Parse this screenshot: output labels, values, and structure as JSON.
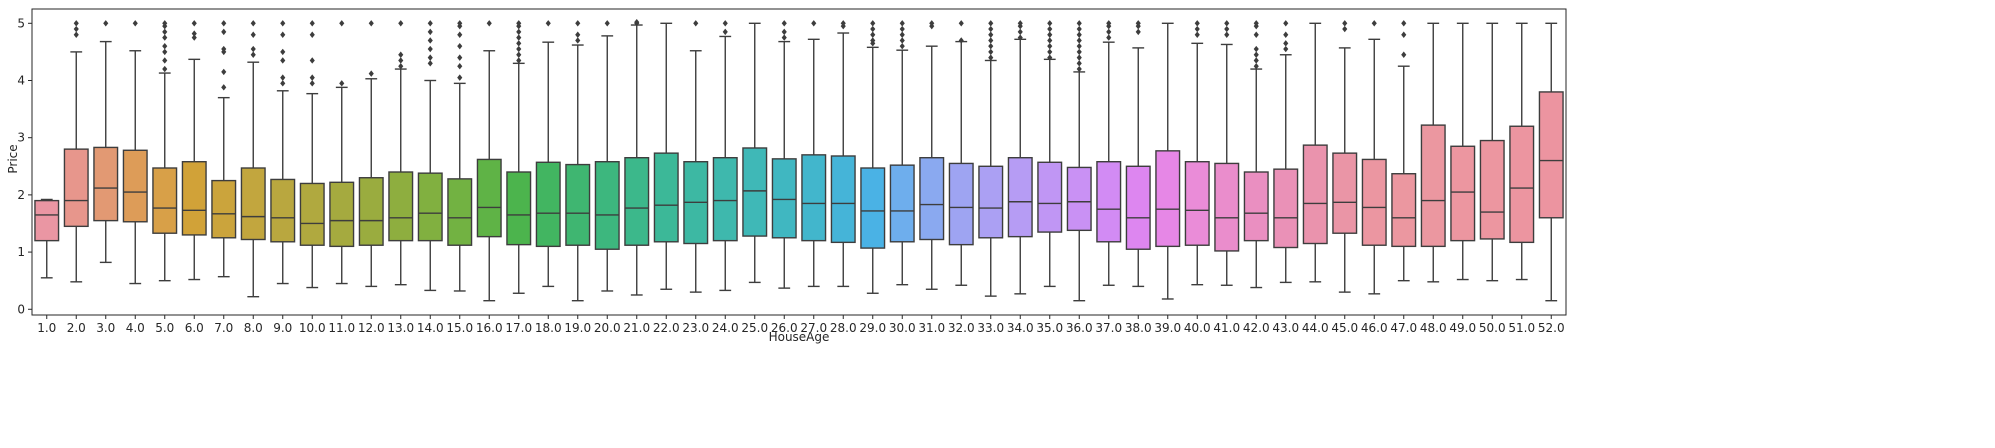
{
  "chart_data": {
    "type": "box",
    "xlabel": "HouseAge",
    "ylabel": "Price",
    "ylim": [
      -0.1,
      5.25
    ],
    "yticks": [
      "0",
      "1",
      "2",
      "3",
      "4",
      "5"
    ],
    "grid": false,
    "legend": "none",
    "colors": [
      "#ea96a3",
      "#e7968c",
      "#e29973",
      "#dd9c58",
      "#d8a048",
      "#d1a238",
      "#cba43c",
      "#c2a63e",
      "#b9a73f",
      "#b0a93f",
      "#a5aa3f",
      "#9aac3f",
      "#8eae3f",
      "#81b040",
      "#72b242",
      "#5fb346",
      "#4cb44d",
      "#42b561",
      "#3fb671",
      "#3db77e",
      "#3cb88b",
      "#3cb898",
      "#3db8a3",
      "#3eb8ad",
      "#3fb8b7",
      "#40b7c1",
      "#42b6cc",
      "#45b4d8",
      "#4ab2e5",
      "#6eaeed",
      "#8aa9f0",
      "#9ea4f2",
      "#aba0f3",
      "#b69cf4",
      "#c096f4",
      "#c991f4",
      "#d28bf4",
      "#dd86f0",
      "#e687e6",
      "#ea8cd8",
      "#ea8dcc",
      "#ea8fc1",
      "#ea91b7",
      "#ea93ad",
      "#ea95a6",
      "#eb96a1",
      "#eb97a0",
      "#eb97a0",
      "#ec96a0",
      "#ec96a0",
      "#ec95a0",
      "#ec94a0"
    ],
    "boxes": [
      {
        "x": "1.0",
        "min": 0.55,
        "q1": 1.2,
        "median": 1.65,
        "q3": 1.9,
        "max": 1.92,
        "outliers": []
      },
      {
        "x": "2.0",
        "min": 0.48,
        "q1": 1.45,
        "median": 1.9,
        "q3": 2.8,
        "max": 4.5,
        "outliers": [
          4.8,
          4.9,
          5.0
        ]
      },
      {
        "x": "3.0",
        "min": 0.82,
        "q1": 1.55,
        "median": 2.12,
        "q3": 2.83,
        "max": 4.68,
        "outliers": [
          5.0
        ]
      },
      {
        "x": "4.0",
        "min": 0.45,
        "q1": 1.53,
        "median": 2.05,
        "q3": 2.78,
        "max": 4.52,
        "outliers": [
          5.0
        ]
      },
      {
        "x": "5.0",
        "min": 0.5,
        "q1": 1.33,
        "median": 1.77,
        "q3": 2.47,
        "max": 4.13,
        "outliers": [
          4.2,
          4.35,
          4.5,
          4.6,
          4.75,
          4.85,
          4.95,
          5.0
        ]
      },
      {
        "x": "6.0",
        "min": 0.52,
        "q1": 1.3,
        "median": 1.73,
        "q3": 2.58,
        "max": 4.37,
        "outliers": [
          4.75,
          4.82,
          5.0
        ]
      },
      {
        "x": "7.0",
        "min": 0.57,
        "q1": 1.25,
        "median": 1.67,
        "q3": 2.25,
        "max": 3.7,
        "outliers": [
          3.88,
          4.15,
          4.5,
          4.55,
          4.85,
          5.0
        ]
      },
      {
        "x": "8.0",
        "min": 0.22,
        "q1": 1.22,
        "median": 1.62,
        "q3": 2.47,
        "max": 4.32,
        "outliers": [
          4.45,
          4.55,
          4.8,
          5.0
        ]
      },
      {
        "x": "9.0",
        "min": 0.45,
        "q1": 1.18,
        "median": 1.6,
        "q3": 2.27,
        "max": 3.82,
        "outliers": [
          3.95,
          4.05,
          4.35,
          4.5,
          4.8,
          5.0
        ]
      },
      {
        "x": "10.0",
        "min": 0.38,
        "q1": 1.12,
        "median": 1.5,
        "q3": 2.2,
        "max": 3.77,
        "outliers": [
          3.95,
          4.05,
          4.35,
          4.8,
          5.0
        ]
      },
      {
        "x": "11.0",
        "min": 0.45,
        "q1": 1.1,
        "median": 1.55,
        "q3": 2.22,
        "max": 3.88,
        "outliers": [
          3.95,
          5.0
        ]
      },
      {
        "x": "12.0",
        "min": 0.4,
        "q1": 1.12,
        "median": 1.55,
        "q3": 2.3,
        "max": 4.03,
        "outliers": [
          4.12,
          5.0
        ]
      },
      {
        "x": "13.0",
        "min": 0.43,
        "q1": 1.2,
        "median": 1.6,
        "q3": 2.4,
        "max": 4.2,
        "outliers": [
          4.25,
          4.35,
          4.45,
          5.0
        ]
      },
      {
        "x": "14.0",
        "min": 0.33,
        "q1": 1.2,
        "median": 1.68,
        "q3": 2.38,
        "max": 4.0,
        "outliers": [
          4.3,
          4.4,
          4.55,
          4.7,
          4.85,
          5.0
        ]
      },
      {
        "x": "15.0",
        "min": 0.32,
        "q1": 1.12,
        "median": 1.6,
        "q3": 2.28,
        "max": 3.95,
        "outliers": [
          4.05,
          4.25,
          4.4,
          4.6,
          4.8,
          4.95,
          5.0
        ]
      },
      {
        "x": "16.0",
        "min": 0.15,
        "q1": 1.27,
        "median": 1.78,
        "q3": 2.62,
        "max": 4.52,
        "outliers": [
          5.0
        ]
      },
      {
        "x": "17.0",
        "min": 0.28,
        "q1": 1.13,
        "median": 1.65,
        "q3": 2.4,
        "max": 4.3,
        "outliers": [
          4.35,
          4.45,
          4.55,
          4.65,
          4.75,
          4.85,
          4.95,
          5.0
        ]
      },
      {
        "x": "18.0",
        "min": 0.4,
        "q1": 1.1,
        "median": 1.68,
        "q3": 2.57,
        "max": 4.67,
        "outliers": [
          5.0
        ]
      },
      {
        "x": "19.0",
        "min": 0.15,
        "q1": 1.12,
        "median": 1.68,
        "q3": 2.53,
        "max": 4.62,
        "outliers": [
          4.7,
          4.8,
          5.0
        ]
      },
      {
        "x": "20.0",
        "min": 0.32,
        "q1": 1.05,
        "median": 1.65,
        "q3": 2.58,
        "max": 4.78,
        "outliers": [
          5.0
        ]
      },
      {
        "x": "21.0",
        "min": 0.25,
        "q1": 1.12,
        "median": 1.77,
        "q3": 2.65,
        "max": 4.97,
        "outliers": [
          5.0,
          5.02
        ]
      },
      {
        "x": "22.0",
        "min": 0.35,
        "q1": 1.18,
        "median": 1.82,
        "q3": 2.73,
        "max": 5.0,
        "outliers": []
      },
      {
        "x": "23.0",
        "min": 0.3,
        "q1": 1.15,
        "median": 1.87,
        "q3": 2.58,
        "max": 4.52,
        "outliers": [
          5.0
        ]
      },
      {
        "x": "24.0",
        "min": 0.33,
        "q1": 1.2,
        "median": 1.9,
        "q3": 2.65,
        "max": 4.77,
        "outliers": [
          4.85,
          5.0
        ]
      },
      {
        "x": "25.0",
        "min": 0.47,
        "q1": 1.28,
        "median": 2.07,
        "q3": 2.82,
        "max": 5.0,
        "outliers": []
      },
      {
        "x": "26.0",
        "min": 0.37,
        "q1": 1.25,
        "median": 1.92,
        "q3": 2.63,
        "max": 4.68,
        "outliers": [
          4.75,
          4.85,
          5.0
        ]
      },
      {
        "x": "27.0",
        "min": 0.4,
        "q1": 1.2,
        "median": 1.85,
        "q3": 2.7,
        "max": 4.72,
        "outliers": [
          5.0
        ]
      },
      {
        "x": "28.0",
        "min": 0.4,
        "q1": 1.17,
        "median": 1.85,
        "q3": 2.68,
        "max": 4.83,
        "outliers": [
          4.95,
          5.0
        ]
      },
      {
        "x": "29.0",
        "min": 0.28,
        "q1": 1.07,
        "median": 1.72,
        "q3": 2.47,
        "max": 4.58,
        "outliers": [
          4.65,
          4.7,
          4.8,
          4.9,
          5.0
        ]
      },
      {
        "x": "30.0",
        "min": 0.43,
        "q1": 1.18,
        "median": 1.72,
        "q3": 2.52,
        "max": 4.53,
        "outliers": [
          4.6,
          4.7,
          4.8,
          4.9,
          5.0
        ]
      },
      {
        "x": "31.0",
        "min": 0.35,
        "q1": 1.22,
        "median": 1.83,
        "q3": 2.65,
        "max": 4.6,
        "outliers": [
          4.95,
          5.0
        ]
      },
      {
        "x": "32.0",
        "min": 0.42,
        "q1": 1.13,
        "median": 1.78,
        "q3": 2.55,
        "max": 4.68,
        "outliers": [
          4.7,
          5.0
        ]
      },
      {
        "x": "33.0",
        "min": 0.23,
        "q1": 1.25,
        "median": 1.77,
        "q3": 2.5,
        "max": 4.35,
        "outliers": [
          4.4,
          4.5,
          4.6,
          4.7,
          4.8,
          4.9,
          5.0
        ]
      },
      {
        "x": "34.0",
        "min": 0.27,
        "q1": 1.27,
        "median": 1.88,
        "q3": 2.65,
        "max": 4.72,
        "outliers": [
          4.75,
          4.85,
          4.95,
          5.0
        ]
      },
      {
        "x": "35.0",
        "min": 0.4,
        "q1": 1.35,
        "median": 1.85,
        "q3": 2.57,
        "max": 4.37,
        "outliers": [
          4.4,
          4.5,
          4.6,
          4.7,
          4.8,
          4.9,
          5.0
        ]
      },
      {
        "x": "36.0",
        "min": 0.15,
        "q1": 1.38,
        "median": 1.88,
        "q3": 2.48,
        "max": 4.15,
        "outliers": [
          4.2,
          4.3,
          4.4,
          4.5,
          4.6,
          4.7,
          4.8,
          4.9,
          5.0
        ]
      },
      {
        "x": "37.0",
        "min": 0.42,
        "q1": 1.18,
        "median": 1.75,
        "q3": 2.58,
        "max": 4.67,
        "outliers": [
          4.75,
          4.85,
          4.95,
          5.0
        ]
      },
      {
        "x": "38.0",
        "min": 0.4,
        "q1": 1.05,
        "median": 1.6,
        "q3": 2.5,
        "max": 4.57,
        "outliers": [
          4.85,
          4.95,
          5.0
        ]
      },
      {
        "x": "39.0",
        "min": 0.18,
        "q1": 1.1,
        "median": 1.75,
        "q3": 2.77,
        "max": 5.0,
        "outliers": []
      },
      {
        "x": "40.0",
        "min": 0.43,
        "q1": 1.12,
        "median": 1.73,
        "q3": 2.58,
        "max": 4.65,
        "outliers": [
          4.8,
          4.9,
          5.0
        ]
      },
      {
        "x": "41.0",
        "min": 0.42,
        "q1": 1.02,
        "median": 1.6,
        "q3": 2.55,
        "max": 4.63,
        "outliers": [
          4.8,
          4.9,
          5.0
        ]
      },
      {
        "x": "42.0",
        "min": 0.38,
        "q1": 1.2,
        "median": 1.68,
        "q3": 2.4,
        "max": 4.2,
        "outliers": [
          4.25,
          4.35,
          4.45,
          4.55,
          4.8,
          4.95,
          5.0
        ]
      },
      {
        "x": "43.0",
        "min": 0.47,
        "q1": 1.08,
        "median": 1.6,
        "q3": 2.45,
        "max": 4.45,
        "outliers": [
          4.55,
          4.65,
          4.8,
          5.0
        ]
      },
      {
        "x": "44.0",
        "min": 0.48,
        "q1": 1.15,
        "median": 1.85,
        "q3": 2.87,
        "max": 5.0,
        "outliers": []
      },
      {
        "x": "45.0",
        "min": 0.3,
        "q1": 1.33,
        "median": 1.87,
        "q3": 2.73,
        "max": 4.57,
        "outliers": [
          4.9,
          5.0
        ]
      },
      {
        "x": "46.0",
        "min": 0.27,
        "q1": 1.12,
        "median": 1.78,
        "q3": 2.62,
        "max": 4.72,
        "outliers": [
          5.0
        ]
      },
      {
        "x": "47.0",
        "min": 0.5,
        "q1": 1.1,
        "median": 1.6,
        "q3": 2.37,
        "max": 4.25,
        "outliers": [
          4.45,
          4.8,
          5.0
        ]
      },
      {
        "x": "48.0",
        "min": 0.48,
        "q1": 1.1,
        "median": 1.9,
        "q3": 3.22,
        "max": 5.0,
        "outliers": []
      },
      {
        "x": "49.0",
        "min": 0.52,
        "q1": 1.2,
        "median": 2.05,
        "q3": 2.85,
        "max": 5.0,
        "outliers": []
      },
      {
        "x": "50.0",
        "min": 0.5,
        "q1": 1.23,
        "median": 1.7,
        "q3": 2.95,
        "max": 5.0,
        "outliers": []
      },
      {
        "x": "51.0",
        "min": 0.52,
        "q1": 1.17,
        "median": 2.12,
        "q3": 3.2,
        "max": 5.0,
        "outliers": []
      },
      {
        "x": "52.0",
        "min": 0.15,
        "q1": 1.6,
        "median": 2.6,
        "q3": 3.8,
        "max": 5.0,
        "outliers": []
      }
    ]
  }
}
